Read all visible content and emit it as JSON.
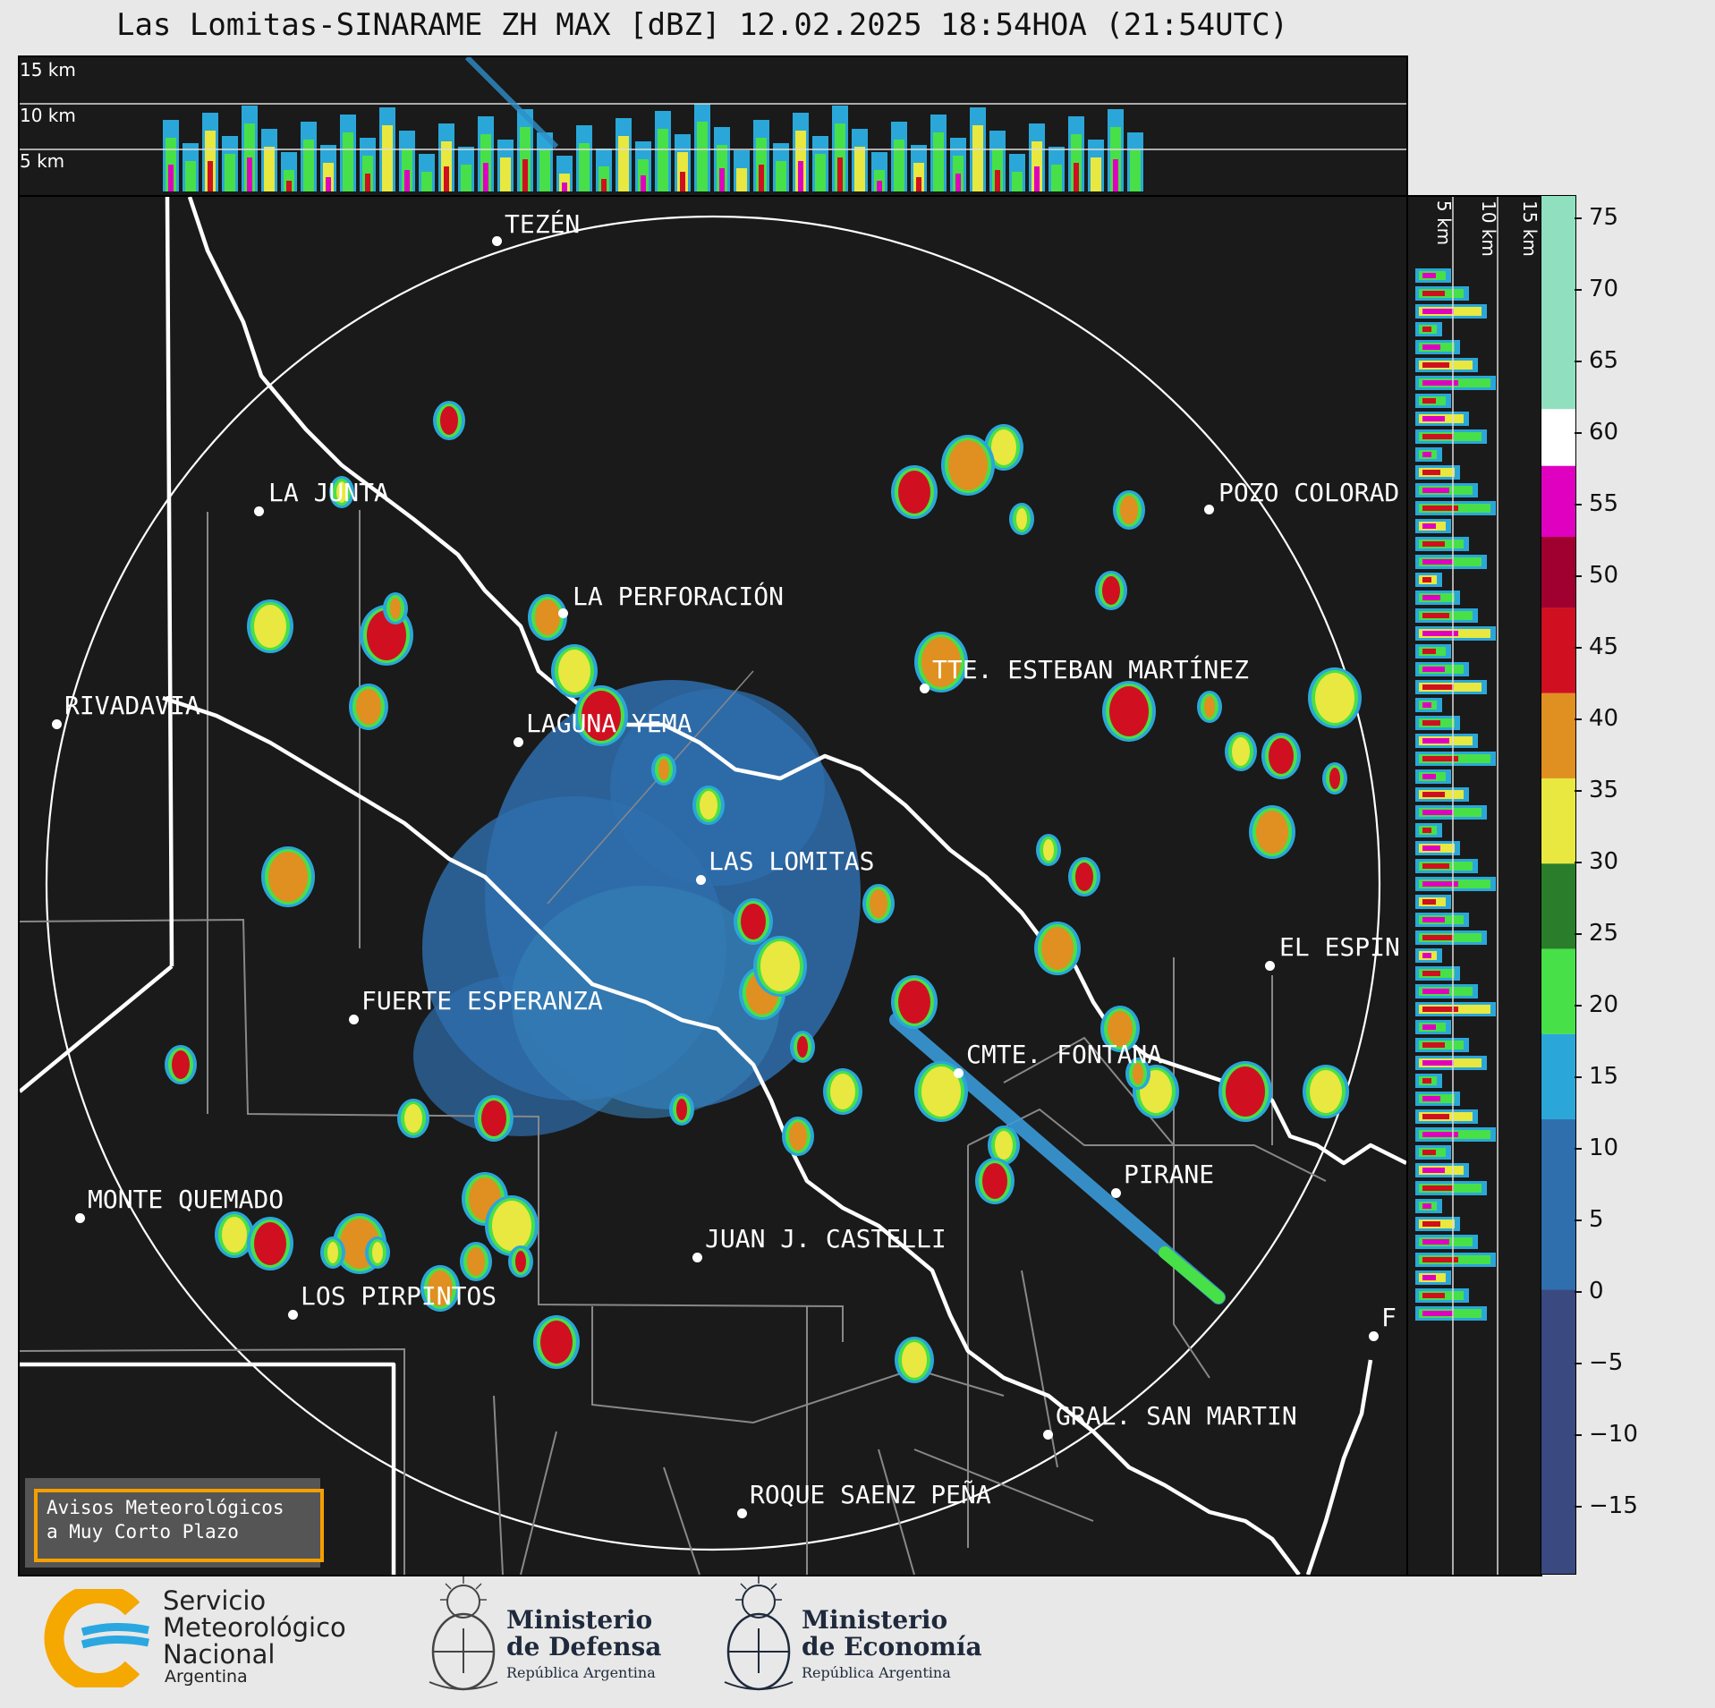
{
  "title": "Las Lomitas-SINARAME ZH MAX [dBZ] 12.02.2025 18:54HOA (21:54UTC)",
  "top_panel": {
    "altitudes": [
      "15 km",
      "10 km",
      "5 km"
    ]
  },
  "side_panel": {
    "altitudes": [
      "5 km",
      "10 km",
      "15 km"
    ]
  },
  "colorbar": {
    "ticks": [
      "75",
      "70",
      "65",
      "60",
      "55",
      "50",
      "45",
      "40",
      "35",
      "30",
      "25",
      "20",
      "15",
      "10",
      "5",
      "0",
      "−5",
      "−10",
      "−15"
    ],
    "range": [
      -20,
      77
    ],
    "colors": {
      "bands": [
        {
          "from": -20,
          "to": 0,
          "color": "#3a4a80"
        },
        {
          "from": 0,
          "to": 12,
          "color": "#2f6fae"
        },
        {
          "from": 12,
          "to": 18,
          "color": "#2aa7d8"
        },
        {
          "from": 18,
          "to": 24,
          "color": "#48e048"
        },
        {
          "from": 24,
          "to": 30,
          "color": "#2a7d2a"
        },
        {
          "from": 30,
          "to": 36,
          "color": "#e8e840"
        },
        {
          "from": 36,
          "to": 42,
          "color": "#e09020"
        },
        {
          "from": 42,
          "to": 48,
          "color": "#d01020"
        },
        {
          "from": 48,
          "to": 53,
          "color": "#a00030"
        },
        {
          "from": 53,
          "to": 58,
          "color": "#e000c0"
        },
        {
          "from": 58,
          "to": 62,
          "color": "#ffffff"
        },
        {
          "from": 62,
          "to": 77,
          "color": "#90e0c0"
        }
      ]
    }
  },
  "cities": [
    {
      "name": "TEZÉN"
    },
    {
      "name": "LA JUNTA"
    },
    {
      "name": "POZO COLORAD"
    },
    {
      "name": "LA PERFORACIÓN"
    },
    {
      "name": "TTE. ESTEBAN MARTÍNEZ"
    },
    {
      "name": "RIVADAVIA"
    },
    {
      "name": "LAGUNA YEMA"
    },
    {
      "name": "LAS LOMITAS"
    },
    {
      "name": "EL ESPIN"
    },
    {
      "name": "FUERTE ESPERANZA"
    },
    {
      "name": "CMTE. FONTANA"
    },
    {
      "name": "PIRANE"
    },
    {
      "name": "MONTE QUEMADO"
    },
    {
      "name": "JUAN J. CASTELLI"
    },
    {
      "name": "LOS PIRPINTOS"
    },
    {
      "name": "GRAL. SAN MARTIN"
    },
    {
      "name": "ROQUE SAENZ PEÑA"
    },
    {
      "name": "F"
    }
  ],
  "warning": {
    "line1": "Avisos Meteorológicos",
    "line2": "a Muy Corto Plazo"
  },
  "logos": {
    "smn": {
      "line1": "Servicio",
      "line2": "Meteorológico",
      "line3": "Nacional",
      "line4": "Argentina"
    },
    "defensa": {
      "line1": "Ministerio",
      "line2": "de Defensa",
      "sub": "República Argentina"
    },
    "economia": {
      "line1": "Ministerio",
      "line2": "de Economía",
      "sub": "República Argentina"
    }
  }
}
